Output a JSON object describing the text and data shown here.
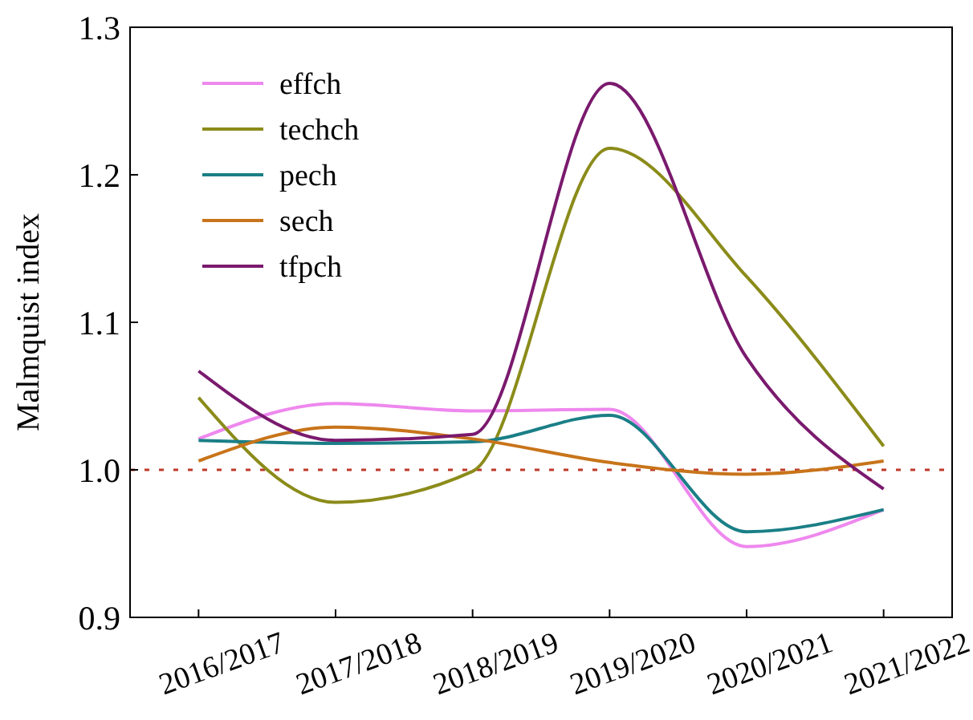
{
  "chart_data": {
    "type": "line",
    "ylabel": "Malmquist index",
    "categories": [
      "2016/2017",
      "2017/2018",
      "2018/2019",
      "2019/2020",
      "2020/2021",
      "2021/2022"
    ],
    "ylim": [
      0.9,
      1.3
    ],
    "yticks": [
      {
        "value": 0.9,
        "label": "0.9"
      },
      {
        "value": 1.0,
        "label": "1.0"
      },
      {
        "value": 1.1,
        "label": "1.1"
      },
      {
        "value": 1.2,
        "label": "1.2"
      },
      {
        "value": 1.3,
        "label": "1.3"
      }
    ],
    "grid": false,
    "legend": "top left",
    "marker": "none",
    "line_style": "solid",
    "series": [
      {
        "name": "effch",
        "color": "#ee88ee",
        "values": [
          1.021,
          1.045,
          1.04,
          1.041,
          0.948,
          0.973
        ]
      },
      {
        "name": "techch",
        "color": "#8b8b1a",
        "values": [
          1.049,
          0.978,
          0.999,
          1.218,
          1.131,
          1.016
        ]
      },
      {
        "name": "pech",
        "color": "#1a7f86",
        "values": [
          1.02,
          1.018,
          1.019,
          1.037,
          0.958,
          0.973
        ]
      },
      {
        "name": "sech",
        "color": "#c8741a",
        "values": [
          1.006,
          1.029,
          1.021,
          1.005,
          0.997,
          1.006
        ]
      },
      {
        "name": "tfpch",
        "color": "#7a1a6e",
        "values": [
          1.067,
          1.02,
          1.024,
          1.262,
          1.076,
          0.987
        ]
      }
    ],
    "ref_lines": [
      {
        "axis": "y",
        "value": 1.0,
        "label": null,
        "color": "#c0392b",
        "line_style": "dotted"
      }
    ]
  }
}
